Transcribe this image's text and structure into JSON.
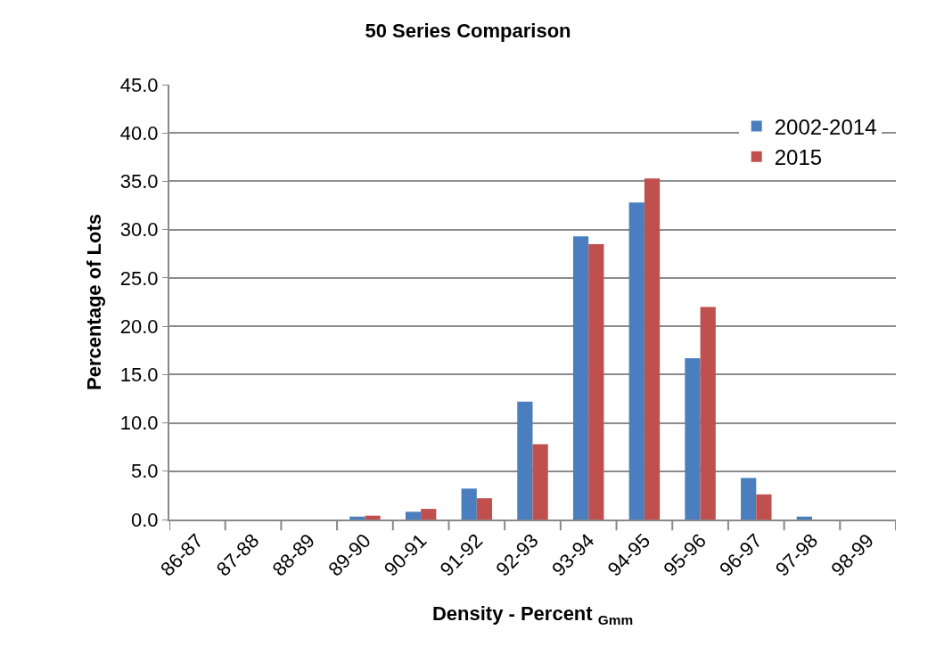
{
  "chart_data": {
    "type": "bar",
    "title": "50 Series Comparison",
    "xlabel": "Density - Percent $_{Gmm}$",
    "ylabel": "Percentage of Lots",
    "categories": [
      "86-87",
      "87-88",
      "88-89",
      "89-90",
      "90-91",
      "91-92",
      "92-93",
      "93-94",
      "94-95",
      "95-96",
      "96-97",
      "97-98",
      "98-99"
    ],
    "series": [
      {
        "name": "2002-2014",
        "color": "#4a7ebf",
        "values": [
          0,
          0,
          0,
          0.3,
          0.8,
          3.2,
          12.2,
          29.3,
          32.8,
          16.7,
          4.3,
          0.3,
          0
        ]
      },
      {
        "name": "2015",
        "color": "#c0504d",
        "values": [
          0,
          0,
          0,
          0.4,
          1.1,
          2.2,
          7.8,
          28.5,
          35.3,
          22.0,
          2.6,
          0,
          0
        ]
      }
    ],
    "ylim": [
      0,
      45
    ],
    "yticks": [
      {
        "value": 0,
        "label": "0.0"
      },
      {
        "value": 5,
        "label": "5.0"
      },
      {
        "value": 10,
        "label": "10.0"
      },
      {
        "value": 15,
        "label": "15.0"
      },
      {
        "value": 20,
        "label": "20.0"
      },
      {
        "value": 25,
        "label": "25.0"
      },
      {
        "value": 30,
        "label": "30.0"
      },
      {
        "value": 35,
        "label": "35.0"
      },
      {
        "value": 40,
        "label": "40.0"
      },
      {
        "value": 45,
        "label": "45.0"
      }
    ],
    "grid": "y",
    "legend": "top right"
  }
}
